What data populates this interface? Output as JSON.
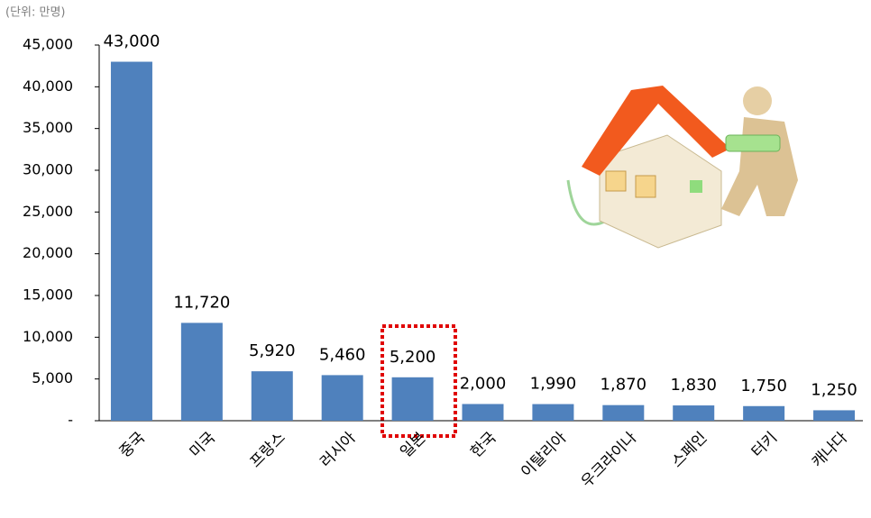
{
  "chart_data": {
    "type": "bar",
    "subtitle": "(단위: 만명)",
    "categories": [
      "중국",
      "미국",
      "프랑스",
      "러시아",
      "일본",
      "한국",
      "이탈리아",
      "우크라이나",
      "스페인",
      "터키",
      "캐나다"
    ],
    "values": [
      43000,
      11720,
      5920,
      5460,
      5200,
      2000,
      1990,
      1870,
      1830,
      1750,
      1250
    ],
    "value_labels": [
      "43,000",
      "11,720",
      "5,920",
      "5,460",
      "5,200",
      "2,000",
      "1,990",
      "1,870",
      "1,830",
      "1,750",
      "1,250"
    ],
    "color": "#4f81bd",
    "ylim": [
      0,
      45000
    ],
    "yticks": [
      {
        "value": 0,
        "label": "-"
      },
      {
        "value": 5000,
        "label": "5,000"
      },
      {
        "value": 10000,
        "label": "10,000"
      },
      {
        "value": 15000,
        "label": "15,000"
      },
      {
        "value": 20000,
        "label": "20,000"
      },
      {
        "value": 25000,
        "label": "25,000"
      },
      {
        "value": 30000,
        "label": "30,000"
      },
      {
        "value": 35000,
        "label": "35,000"
      },
      {
        "value": 40000,
        "label": "40,000"
      },
      {
        "value": 45000,
        "label": "45,000"
      }
    ],
    "grid": false
  }
}
